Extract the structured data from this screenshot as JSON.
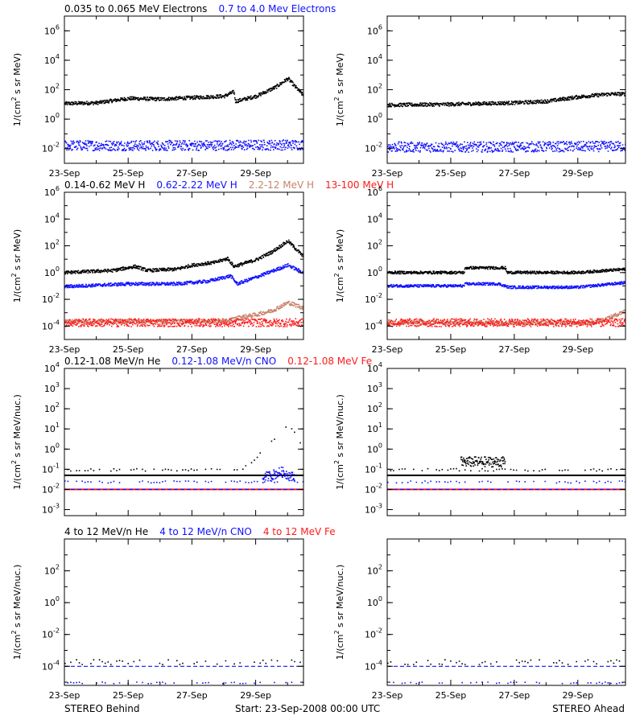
{
  "colors": {
    "black": "#000000",
    "blue": "#1010ff",
    "salmon": "#c8846c",
    "red": "#ff1a1a",
    "background": "#ffffff"
  },
  "footer": {
    "left": "STEREO Behind",
    "center": "Start: 23-Sep-2008 00:00 UTC",
    "right": "STEREO Ahead"
  },
  "chart_data": [
    {
      "type": "scatter",
      "panel": "electrons",
      "ylog": true,
      "ylim_exp": [
        -3,
        7
      ],
      "yticks": [
        {
          "base": "10",
          "exp": "6"
        },
        {
          "base": "10",
          "exp": "4"
        },
        {
          "base": "10",
          "exp": "2"
        },
        {
          "base": "10",
          "exp": "0"
        },
        {
          "base": "10",
          "exp": "-2"
        }
      ],
      "ylabel": {
        "prefix": "1/(cm",
        "sup": "2",
        "suffix": " s sr MeV)"
      },
      "legend": [
        {
          "name": "0.035 to 0.065 MeV Electrons",
          "color": "black"
        },
        {
          "name": "0.7 to 4.0 Mev Electrons",
          "color": "blue"
        }
      ],
      "xlabels": [
        "23-Sep",
        "25-Sep",
        "27-Sep",
        "29-Sep"
      ],
      "xlim_days": [
        0,
        7.5
      ],
      "behind": {
        "series": [
          {
            "name": "0.035 to 0.065 MeV Electrons",
            "color": "black",
            "spread": 0.12,
            "points": [
              [
                0,
                1.1
              ],
              [
                1,
                1.15
              ],
              [
                2,
                1.45
              ],
              [
                3,
                1.4
              ],
              [
                4,
                1.5
              ],
              [
                5,
                1.6
              ],
              [
                5.3,
                1.9
              ],
              [
                5.35,
                1.25
              ],
              [
                6,
                1.6
              ],
              [
                6.6,
                2.2
              ],
              [
                7,
                2.8
              ],
              [
                7.2,
                2.3
              ],
              [
                7.5,
                1.6
              ]
            ]
          },
          {
            "name": "0.7 to 4.0 Mev Electrons",
            "color": "blue",
            "spread": 0.35,
            "points": [
              [
                0,
                -1.75
              ],
              [
                3.5,
                -1.75
              ],
              [
                7.5,
                -1.7
              ]
            ]
          }
        ]
      },
      "ahead": {
        "series": [
          {
            "name": "0.035 to 0.065 MeV Electrons",
            "color": "black",
            "spread": 0.12,
            "points": [
              [
                0,
                1.0
              ],
              [
                2,
                1.05
              ],
              [
                4,
                1.15
              ],
              [
                5,
                1.25
              ],
              [
                6,
                1.55
              ],
              [
                7,
                1.75
              ],
              [
                7.5,
                1.75
              ]
            ]
          },
          {
            "name": "0.7 to 4.0 Mev Electrons",
            "color": "blue",
            "spread": 0.35,
            "points": [
              [
                0,
                -1.85
              ],
              [
                3.5,
                -1.85
              ],
              [
                7.5,
                -1.8
              ]
            ]
          }
        ]
      }
    },
    {
      "type": "scatter",
      "panel": "protons",
      "ylog": true,
      "ylim_exp": [
        -5,
        6
      ],
      "yticks": [
        {
          "base": "10",
          "exp": "6"
        },
        {
          "base": "10",
          "exp": "4"
        },
        {
          "base": "10",
          "exp": "2"
        },
        {
          "base": "10",
          "exp": "0"
        },
        {
          "base": "10",
          "exp": "-2"
        },
        {
          "base": "10",
          "exp": "-4"
        }
      ],
      "ylabel": {
        "prefix": "1/(cm",
        "sup": "2",
        "suffix": " s sr MeV)"
      },
      "legend": [
        {
          "name": "0.14-0.62 MeV H",
          "color": "black"
        },
        {
          "name": "0.62-2.22 MeV H",
          "color": "blue"
        },
        {
          "name": "2.2-12 MeV H",
          "color": "salmon"
        },
        {
          "name": "13-100 MeV H",
          "color": "red"
        }
      ],
      "xlabels": [
        "23-Sep",
        "25-Sep",
        "27-Sep",
        "29-Sep"
      ],
      "xlim_days": [
        0,
        7.5
      ],
      "behind": {
        "series": [
          {
            "name": "0.14-0.62 MeV H",
            "color": "black",
            "spread": 0.12,
            "points": [
              [
                0,
                0.05
              ],
              [
                1.5,
                0.2
              ],
              [
                2.2,
                0.5
              ],
              [
                2.6,
                0.2
              ],
              [
                3.5,
                0.3
              ],
              [
                4,
                0.6
              ],
              [
                4.7,
                0.8
              ],
              [
                5.1,
                1.1
              ],
              [
                5.3,
                0.5
              ],
              [
                6,
                1.0
              ],
              [
                6.5,
                1.6
              ],
              [
                7,
                2.4
              ],
              [
                7.5,
                1.2
              ]
            ]
          },
          {
            "name": "0.62-2.22 MeV H",
            "color": "blue",
            "spread": 0.12,
            "points": [
              [
                0,
                -1.0
              ],
              [
                2,
                -0.8
              ],
              [
                3.5,
                -0.8
              ],
              [
                4.5,
                -0.6
              ],
              [
                5.2,
                -0.2
              ],
              [
                5.4,
                -0.8
              ],
              [
                6,
                -0.3
              ],
              [
                7,
                0.6
              ],
              [
                7.5,
                0.0
              ]
            ]
          },
          {
            "name": "2.2-12 MeV H",
            "color": "salmon",
            "spread": 0.15,
            "points": [
              [
                0,
                -3.6
              ],
              [
                5,
                -3.6
              ],
              [
                5.5,
                -3.3
              ],
              [
                6,
                -3.1
              ],
              [
                6.5,
                -2.8
              ],
              [
                7,
                -2.2
              ],
              [
                7.5,
                -2.6
              ]
            ]
          },
          {
            "name": "13-100 MeV H",
            "color": "red",
            "spread": 0.3,
            "points": [
              [
                0,
                -3.7
              ],
              [
                7.5,
                -3.7
              ]
            ]
          }
        ]
      },
      "ahead": {
        "series": [
          {
            "name": "0.14-0.62 MeV H",
            "color": "black",
            "spread": 0.1,
            "points": [
              [
                0,
                0.05
              ],
              [
                2.4,
                0.05
              ],
              [
                2.45,
                0.4
              ],
              [
                3.7,
                0.4
              ],
              [
                3.75,
                0.05
              ],
              [
                6,
                0.05
              ],
              [
                7.5,
                0.3
              ]
            ]
          },
          {
            "name": "0.62-2.22 MeV H",
            "color": "blue",
            "spread": 0.1,
            "points": [
              [
                0,
                -0.95
              ],
              [
                2.4,
                -0.95
              ],
              [
                2.45,
                -0.8
              ],
              [
                3.5,
                -0.8
              ],
              [
                3.8,
                -1.05
              ],
              [
                6,
                -1.05
              ],
              [
                7.5,
                -0.7
              ]
            ]
          },
          {
            "name": "2.2-12 MeV H",
            "color": "salmon",
            "spread": 0.15,
            "points": [
              [
                0,
                -3.7
              ],
              [
                6.5,
                -3.7
              ],
              [
                7,
                -3.3
              ],
              [
                7.5,
                -2.8
              ]
            ]
          },
          {
            "name": "13-100 MeV H",
            "color": "red",
            "spread": 0.3,
            "points": [
              [
                0,
                -3.7
              ],
              [
                7.5,
                -3.7
              ]
            ]
          }
        ]
      }
    },
    {
      "type": "scatter",
      "panel": "heavy-ions-low",
      "ylog": true,
      "ylim_exp": [
        -3.3,
        4
      ],
      "yticks": [
        {
          "base": "10",
          "exp": "4"
        },
        {
          "base": "10",
          "exp": "3"
        },
        {
          "base": "10",
          "exp": "2"
        },
        {
          "base": "10",
          "exp": "1"
        },
        {
          "base": "10",
          "exp": "0"
        },
        {
          "base": "10",
          "exp": "-1"
        },
        {
          "base": "10",
          "exp": "-2"
        },
        {
          "base": "10",
          "exp": "-3"
        }
      ],
      "ylabel": {
        "prefix": "1/(cm",
        "sup": "2",
        "suffix": " s sr MeV/nuc.)"
      },
      "legend": [
        {
          "name": "0.12-1.08 MeV/n He",
          "color": "black"
        },
        {
          "name": "0.12-1.08 MeV/n CNO",
          "color": "blue"
        },
        {
          "name": "0.12-1.08 MeV Fe",
          "color": "red"
        }
      ],
      "xlabels": [],
      "xlim_days": [
        0,
        7.5
      ],
      "behind": {
        "series": [
          {
            "name": "0.12-1.08 MeV/n He",
            "color": "black",
            "spread": 0.0,
            "line": true,
            "points": [
              [
                0,
                -1.3
              ],
              [
                7.5,
                -1.3
              ]
            ]
          },
          {
            "name": "0.12-1.08 MeV/n He",
            "color": "black",
            "spread": 0.06,
            "sparse": true,
            "points": [
              [
                0,
                -1.0
              ],
              [
                5.5,
                -1.0
              ],
              [
                5.8,
                -0.7
              ],
              [
                6.2,
                -0.1
              ],
              [
                6.6,
                0.6
              ],
              [
                7.0,
                1.3
              ],
              [
                7.3,
                0.6
              ],
              [
                7.5,
                0.1
              ]
            ]
          },
          {
            "name": "0.12-1.08 MeV/n CNO",
            "color": "blue",
            "spread": 0.05,
            "sparse": true,
            "points": [
              [
                0,
                -1.6
              ],
              [
                7.5,
                -1.6
              ]
            ]
          },
          {
            "name": "0.12-1.08 MeV/n CNO",
            "color": "blue",
            "spread": 0.25,
            "points": [
              [
                6.2,
                -1.4
              ],
              [
                6.8,
                -1.1
              ],
              [
                7.2,
                -1.4
              ]
            ]
          },
          {
            "name": "0.12-1.08 MeV Fe",
            "color": "red",
            "spread": 0.0,
            "line": true,
            "points": [
              [
                0,
                -2.0
              ],
              [
                7.5,
                -2.0
              ]
            ]
          },
          {
            "name": "0.12-1.08 MeV/n CNO",
            "color": "blue",
            "spread": 0.0,
            "dashed": true,
            "points": [
              [
                0,
                -2.0
              ],
              [
                7.5,
                -2.0
              ]
            ]
          }
        ]
      },
      "ahead": {
        "series": [
          {
            "name": "0.12-1.08 MeV/n He",
            "color": "black",
            "spread": 0.0,
            "line": true,
            "points": [
              [
                0,
                -1.3
              ],
              [
                7.5,
                -1.3
              ]
            ]
          },
          {
            "name": "0.12-1.08 MeV/n He",
            "color": "black",
            "spread": 0.06,
            "sparse": true,
            "points": [
              [
                0,
                -1.0
              ],
              [
                7.5,
                -1.0
              ]
            ]
          },
          {
            "name": "0.12-1.08 MeV/n He",
            "color": "black",
            "spread": 0.25,
            "points": [
              [
                2.3,
                -0.6
              ],
              [
                3.7,
                -0.6
              ]
            ]
          },
          {
            "name": "0.12-1.08 MeV/n CNO",
            "color": "blue",
            "spread": 0.05,
            "sparse": true,
            "points": [
              [
                0,
                -1.6
              ],
              [
                7.5,
                -1.6
              ]
            ]
          },
          {
            "name": "0.12-1.08 MeV Fe",
            "color": "red",
            "spread": 0.0,
            "line": true,
            "points": [
              [
                0,
                -2.0
              ],
              [
                7.5,
                -2.0
              ]
            ]
          },
          {
            "name": "0.12-1.08 MeV/n CNO",
            "color": "blue",
            "spread": 0.0,
            "dashed": true,
            "points": [
              [
                0,
                -2.0
              ],
              [
                7.5,
                -2.0
              ]
            ]
          }
        ]
      }
    },
    {
      "type": "scatter",
      "panel": "heavy-ions-high",
      "ylog": true,
      "ylim_exp": [
        -5.2,
        4
      ],
      "yticks": [
        {
          "base": "10",
          "exp": "2"
        },
        {
          "base": "10",
          "exp": "0"
        },
        {
          "base": "10",
          "exp": "-2"
        },
        {
          "base": "10",
          "exp": "-4"
        }
      ],
      "ylabel": {
        "prefix": "1/(cm",
        "sup": "2",
        "suffix": " s sr MeV/nuc.)"
      },
      "legend": [
        {
          "name": "4 to 12 MeV/n He",
          "color": "black"
        },
        {
          "name": "4 to 12 MeV/n CNO",
          "color": "blue"
        },
        {
          "name": "4 to 12 MeV Fe",
          "color": "red"
        }
      ],
      "xlabels": [
        "23-Sep",
        "25-Sep",
        "27-Sep",
        "29-Sep"
      ],
      "xlim_days": [
        0,
        7.5
      ],
      "behind": {
        "series": [
          {
            "name": "4 to 12 MeV/n CNO",
            "color": "blue",
            "spread": 0.0,
            "dashed": true,
            "points": [
              [
                0,
                -4.0
              ],
              [
                7.5,
                -4.0
              ]
            ]
          },
          {
            "name": "4 to 12 MeV/n He",
            "color": "black",
            "spread": 0.15,
            "sparse": true,
            "points": [
              [
                0,
                -3.7
              ],
              [
                7.5,
                -3.7
              ]
            ]
          },
          {
            "name": "4 to 12 MeV/n CNO",
            "color": "blue",
            "spread": 0.05,
            "sparse": true,
            "points": [
              [
                0,
                -5.0
              ],
              [
                7.5,
                -5.0
              ]
            ]
          }
        ]
      },
      "ahead": {
        "series": [
          {
            "name": "4 to 12 MeV/n CNO",
            "color": "blue",
            "spread": 0.0,
            "dashed": true,
            "points": [
              [
                0,
                -4.0
              ],
              [
                7.5,
                -4.0
              ]
            ]
          },
          {
            "name": "4 to 12 MeV/n He",
            "color": "black",
            "spread": 0.15,
            "sparse": true,
            "points": [
              [
                0,
                -3.7
              ],
              [
                7.5,
                -3.7
              ]
            ]
          },
          {
            "name": "4 to 12 MeV/n CNO",
            "color": "blue",
            "spread": 0.05,
            "sparse": true,
            "points": [
              [
                0,
                -5.0
              ],
              [
                7.5,
                -5.0
              ]
            ]
          }
        ]
      }
    }
  ]
}
